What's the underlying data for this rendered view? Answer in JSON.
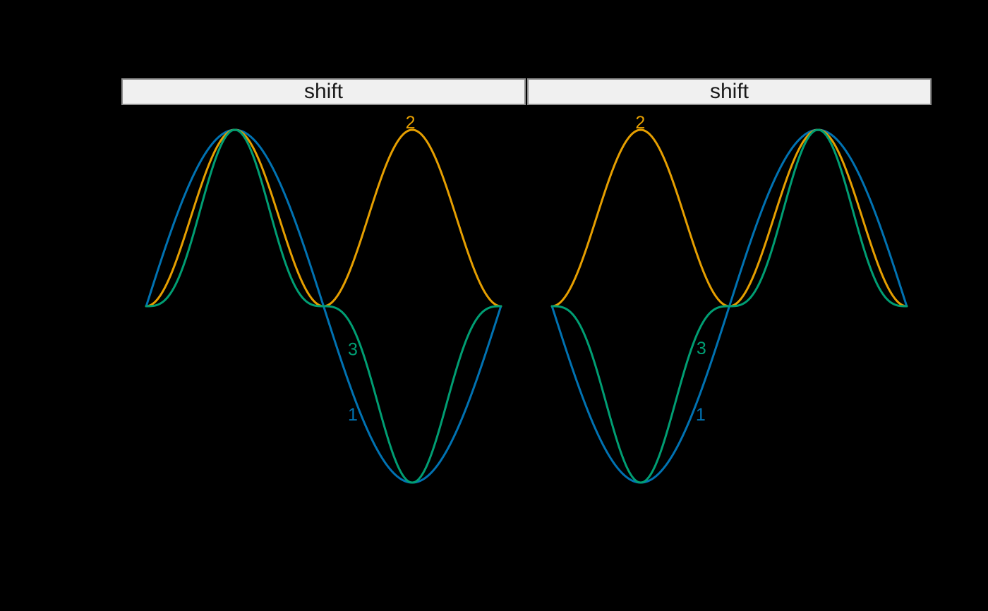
{
  "figure": {
    "background": "#000000"
  },
  "strips": {
    "bg": "#f0f0f0",
    "border": "#8f8f8f",
    "text_color": "#1a1a1a"
  },
  "chart_data": {
    "type": "line",
    "title": "",
    "facet_variable": "shift",
    "x_unit": "radians, in multiples of pi",
    "ylim": [
      -1.14,
      1.14
    ],
    "x_pad_pi": 0.14,
    "grid": false,
    "axes_visible": false,
    "legend": "direct in-panel curve labels",
    "series": [
      {
        "name": "1",
        "power": 1,
        "function": "sin(x)",
        "color": "#0072B2"
      },
      {
        "name": "2",
        "power": 2,
        "function": "sin(x)^2",
        "color": "#E69F00"
      },
      {
        "name": "3",
        "power": 3,
        "function": "sin(x)^3",
        "color": "#009E73"
      }
    ],
    "samples_x_pi": [
      0,
      0.25,
      0.5,
      0.75,
      1,
      1.25,
      1.5,
      1.75,
      2,
      2.25,
      2.5,
      2.75,
      3
    ],
    "samples": {
      "1": [
        0,
        0.707,
        1,
        0.707,
        0,
        -0.707,
        -1,
        -0.707,
        0,
        0.707,
        1,
        0.707,
        0
      ],
      "2": [
        0,
        0.5,
        1,
        0.5,
        0,
        0.5,
        1,
        0.5,
        0,
        0.5,
        1,
        0.5,
        0
      ],
      "3": [
        0,
        0.354,
        1,
        0.354,
        0,
        -0.354,
        -1,
        -0.354,
        0,
        0.354,
        1,
        0.354,
        0
      ]
    },
    "panels": [
      {
        "strip_label": "shift",
        "x_domain_pi": [
          0,
          2
        ],
        "labels": [
          {
            "series": "2",
            "x_pi": 1.49,
            "y": 1.04
          },
          {
            "series": "3",
            "x_pi": 1.165,
            "y": -0.245
          },
          {
            "series": "1",
            "x_pi": 1.165,
            "y": -0.615
          }
        ]
      },
      {
        "strip_label": "shift",
        "x_domain_pi": [
          1,
          3
        ],
        "labels": [
          {
            "series": "2",
            "x_pi": 1.498,
            "y": 1.04
          },
          {
            "series": "3",
            "x_pi": 1.842,
            "y": -0.24
          },
          {
            "series": "1",
            "x_pi": 1.838,
            "y": -0.615
          }
        ]
      }
    ]
  }
}
